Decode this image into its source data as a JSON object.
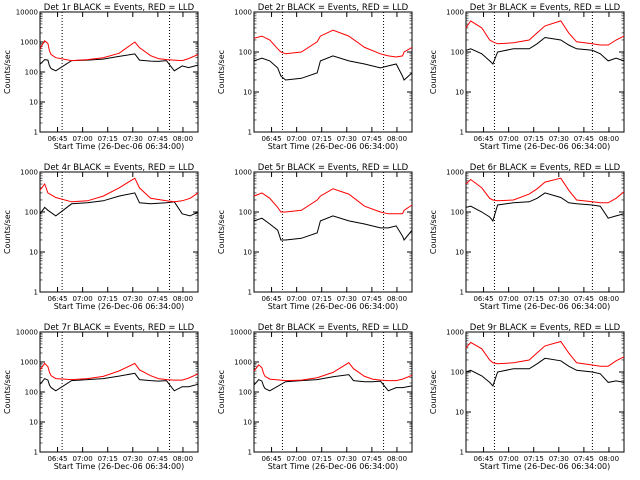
{
  "figure": {
    "background": "#ffffff",
    "black_color": "#000000",
    "red_color": "#ff0000"
  },
  "chart_data": [
    {
      "type": "line",
      "title": "Det 1r BLACK = Events, RED = LLD",
      "xlabel": "Start Time (26-Dec-06 06:34:00)",
      "ylabel": "Counts/sec",
      "yscale": "log",
      "ylim": [
        1,
        10000
      ],
      "y_ticks": [
        "1",
        "10",
        "100",
        "1000",
        "10000"
      ],
      "xlim": [
        0,
        100
      ],
      "x": [
        0,
        3,
        5,
        6,
        7,
        10,
        20,
        30,
        40,
        50,
        60,
        63,
        70,
        75,
        80,
        85,
        90,
        94,
        100
      ],
      "x_ticks": [
        "06:45",
        "07:00",
        "07:15",
        "07:30",
        "07:45",
        "08:00"
      ],
      "series": [
        {
          "name": "BLACK = Events",
          "values": [
            180,
            260,
            250,
            160,
            130,
            110,
            240,
            250,
            270,
            330,
            400,
            250,
            230,
            225,
            240,
            110,
            160,
            140,
            170
          ]
        },
        {
          "name": "RED = LLD",
          "values": [
            600,
            1100,
            900,
            500,
            380,
            300,
            240,
            260,
            300,
            420,
            1000,
            650,
            350,
            280,
            260,
            250,
            240,
            280,
            380
          ]
        }
      ],
      "verticals": [
        14,
        82
      ]
    },
    {
      "type": "line",
      "title": "Det 2r BLACK = Events, RED = LLD",
      "xlabel": "Start Time (26-Dec-06 06:34:00)",
      "ylabel": "Counts/sec",
      "yscale": "log",
      "ylim": [
        1,
        1000
      ],
      "y_ticks": [
        "1",
        "10",
        "100",
        "1000"
      ],
      "xlim": [
        0,
        100
      ],
      "x": [
        0,
        5,
        10,
        15,
        17,
        20,
        30,
        40,
        42,
        50,
        60,
        70,
        80,
        85,
        90,
        94,
        95,
        100
      ],
      "x_ticks": [
        "06:45",
        "07:00",
        "07:15",
        "07:30",
        "07:45",
        "08:00"
      ],
      "series": [
        {
          "name": "BLACK = Events",
          "values": [
            60,
            70,
            60,
            40,
            25,
            20,
            22,
            30,
            60,
            80,
            60,
            50,
            40,
            45,
            50,
            25,
            20,
            30
          ]
        },
        {
          "name": "RED = LLD",
          "values": [
            220,
            250,
            200,
            120,
            100,
            90,
            100,
            180,
            250,
            350,
            250,
            130,
            90,
            80,
            75,
            80,
            100,
            130
          ]
        }
      ],
      "verticals": [
        18,
        82
      ]
    },
    {
      "type": "line",
      "title": "Det 3r BLACK = Events, RED = LLD",
      "xlabel": "Start Time (26-Dec-06 06:34:00)",
      "ylabel": "Counts/sec",
      "yscale": "log",
      "ylim": [
        1,
        1000
      ],
      "y_ticks": [
        "1",
        "10",
        "100",
        "1000"
      ],
      "xlim": [
        0,
        100
      ],
      "x": [
        0,
        3,
        10,
        15,
        17,
        20,
        30,
        40,
        45,
        50,
        60,
        65,
        70,
        80,
        85,
        90,
        95,
        100
      ],
      "x_ticks": [
        "06:45",
        "07:00",
        "07:15",
        "07:30",
        "07:45",
        "08:00"
      ],
      "series": [
        {
          "name": "BLACK = Events",
          "values": [
            110,
            120,
            90,
            60,
            50,
            100,
            120,
            120,
            160,
            230,
            200,
            150,
            120,
            110,
            90,
            60,
            70,
            60
          ]
        },
        {
          "name": "RED = LLD",
          "values": [
            400,
            600,
            400,
            200,
            180,
            160,
            170,
            200,
            300,
            450,
            600,
            300,
            180,
            160,
            150,
            150,
            200,
            250
          ]
        }
      ],
      "verticals": [
        18,
        80
      ]
    },
    {
      "type": "line",
      "title": "Det 4r BLACK = Events, RED = LLD",
      "xlabel": "Start Time (26-Dec-06 06:34:00)",
      "ylabel": "Counts/sec",
      "yscale": "log",
      "ylim": [
        1,
        1000
      ],
      "y_ticks": [
        "1",
        "10",
        "100",
        "1000"
      ],
      "xlim": [
        0,
        100
      ],
      "x": [
        0,
        3,
        5,
        10,
        20,
        30,
        40,
        50,
        60,
        63,
        70,
        80,
        85,
        90,
        95,
        100
      ],
      "x_ticks": [
        "06:45",
        "07:00",
        "07:15",
        "07:30",
        "07:45",
        "08:00"
      ],
      "series": [
        {
          "name": "BLACK = Events",
          "values": [
            90,
            130,
            110,
            80,
            160,
            170,
            190,
            250,
            300,
            170,
            160,
            170,
            180,
            90,
            80,
            100
          ]
        },
        {
          "name": "RED = LLD",
          "values": [
            350,
            500,
            300,
            230,
            180,
            190,
            250,
            400,
            700,
            400,
            220,
            190,
            180,
            190,
            220,
            300
          ]
        }
      ],
      "verticals": [
        14,
        82
      ]
    },
    {
      "type": "line",
      "title": "Det 5r BLACK = Events, RED = LLD",
      "xlabel": "Start Time (26-Dec-06 06:34:00)",
      "ylabel": "Counts/sec",
      "yscale": "log",
      "ylim": [
        1,
        1000
      ],
      "y_ticks": [
        "1",
        "10",
        "100",
        "1000"
      ],
      "xlim": [
        0,
        100
      ],
      "x": [
        0,
        5,
        10,
        15,
        17,
        20,
        30,
        40,
        42,
        50,
        60,
        70,
        80,
        85,
        90,
        94,
        95,
        100
      ],
      "x_ticks": [
        "06:45",
        "07:00",
        "07:15",
        "07:30",
        "07:45",
        "08:00"
      ],
      "series": [
        {
          "name": "BLACK = Events",
          "values": [
            60,
            70,
            50,
            35,
            20,
            20,
            22,
            30,
            60,
            80,
            60,
            50,
            40,
            40,
            45,
            25,
            20,
            35
          ]
        },
        {
          "name": "RED = LLD",
          "values": [
            250,
            300,
            220,
            130,
            100,
            100,
            110,
            200,
            250,
            380,
            280,
            140,
            100,
            90,
            90,
            90,
            110,
            150
          ]
        }
      ],
      "verticals": [
        18,
        82
      ]
    },
    {
      "type": "line",
      "title": "Det 6r BLACK = Events, RED = LLD",
      "xlabel": "Start Time (26-Dec-06 06:34:00)",
      "ylabel": "Counts/sec",
      "yscale": "log",
      "ylim": [
        1,
        1000
      ],
      "y_ticks": [
        "1",
        "10",
        "100",
        "1000"
      ],
      "xlim": [
        0,
        100
      ],
      "x": [
        0,
        3,
        10,
        15,
        17,
        20,
        30,
        40,
        45,
        50,
        60,
        65,
        70,
        80,
        85,
        90,
        95,
        100
      ],
      "x_ticks": [
        "06:45",
        "07:00",
        "07:15",
        "07:30",
        "07:45",
        "08:00"
      ],
      "series": [
        {
          "name": "BLACK = Events",
          "values": [
            130,
            140,
            100,
            75,
            60,
            150,
            170,
            180,
            220,
            300,
            230,
            170,
            160,
            150,
            140,
            70,
            80,
            90
          ]
        },
        {
          "name": "RED = LLD",
          "values": [
            500,
            650,
            400,
            220,
            200,
            190,
            200,
            280,
            380,
            560,
            700,
            350,
            200,
            180,
            170,
            170,
            220,
            320
          ]
        }
      ],
      "verticals": [
        18,
        80
      ]
    },
    {
      "type": "line",
      "title": "Det 7r BLACK = Events, RED = LLD",
      "xlabel": "Start Time (26-Dec-06 06:34:00)",
      "ylabel": "Counts/sec",
      "yscale": "log",
      "ylim": [
        1,
        10000
      ],
      "y_ticks": [
        "1",
        "10",
        "100",
        "1000",
        "10000"
      ],
      "xlim": [
        0,
        100
      ],
      "x": [
        0,
        3,
        5,
        6,
        7,
        10,
        20,
        30,
        40,
        50,
        60,
        63,
        70,
        75,
        80,
        85,
        90,
        94,
        100
      ],
      "x_ticks": [
        "06:45",
        "07:00",
        "07:15",
        "07:30",
        "07:45",
        "08:00"
      ],
      "series": [
        {
          "name": "BLACK = Events",
          "values": [
            180,
            280,
            250,
            170,
            140,
            110,
            240,
            260,
            280,
            340,
            420,
            260,
            240,
            230,
            240,
            110,
            150,
            150,
            180
          ]
        },
        {
          "name": "RED = LLD",
          "values": [
            550,
            900,
            700,
            450,
            350,
            280,
            260,
            280,
            330,
            500,
            900,
            550,
            350,
            280,
            260,
            250,
            250,
            290,
            400
          ]
        }
      ],
      "verticals": [
        14,
        82
      ]
    },
    {
      "type": "line",
      "title": "Det 8r BLACK = Events, RED = LLD",
      "xlabel": "Start Time (26-Dec-06 06:34:00)",
      "ylabel": "Counts/sec",
      "yscale": "log",
      "ylim": [
        1,
        10000
      ],
      "y_ticks": [
        "1",
        "10",
        "100",
        "1000",
        "10000"
      ],
      "xlim": [
        0,
        100
      ],
      "x": [
        0,
        3,
        5,
        6,
        7,
        10,
        20,
        30,
        40,
        50,
        60,
        63,
        70,
        75,
        80,
        85,
        90,
        94,
        100
      ],
      "x_ticks": [
        "06:45",
        "07:00",
        "07:15",
        "07:30",
        "07:45",
        "08:00"
      ],
      "series": [
        {
          "name": "BLACK = Events",
          "values": [
            170,
            260,
            230,
            160,
            130,
            110,
            220,
            240,
            260,
            320,
            380,
            240,
            220,
            220,
            230,
            110,
            140,
            140,
            160
          ]
        },
        {
          "name": "RED = LLD",
          "values": [
            500,
            800,
            650,
            420,
            330,
            270,
            240,
            250,
            300,
            450,
            950,
            600,
            330,
            270,
            250,
            240,
            240,
            270,
            360
          ]
        }
      ],
      "verticals": [
        18,
        82
      ]
    },
    {
      "type": "line",
      "title": "Det 9r BLACK = Events, RED = LLD",
      "xlabel": "Start Time (26-Dec-06 06:34:00)",
      "ylabel": "Counts/sec",
      "yscale": "log",
      "ylim": [
        1,
        1000
      ],
      "y_ticks": [
        "1",
        "10",
        "100",
        "1000"
      ],
      "xlim": [
        0,
        100
      ],
      "x": [
        0,
        3,
        10,
        15,
        17,
        20,
        30,
        40,
        45,
        50,
        60,
        65,
        70,
        80,
        85,
        90,
        95,
        100
      ],
      "x_ticks": [
        "06:45",
        "07:00",
        "07:15",
        "07:30",
        "07:45",
        "08:00"
      ],
      "series": [
        {
          "name": "BLACK = Events",
          "values": [
            100,
            110,
            80,
            55,
            45,
            100,
            120,
            120,
            160,
            220,
            190,
            140,
            110,
            100,
            90,
            55,
            60,
            55
          ]
        },
        {
          "name": "RED = LLD",
          "values": [
            400,
            550,
            380,
            200,
            170,
            160,
            170,
            200,
            300,
            450,
            580,
            300,
            170,
            150,
            140,
            140,
            190,
            240
          ]
        }
      ],
      "verticals": [
        18,
        80
      ]
    }
  ]
}
